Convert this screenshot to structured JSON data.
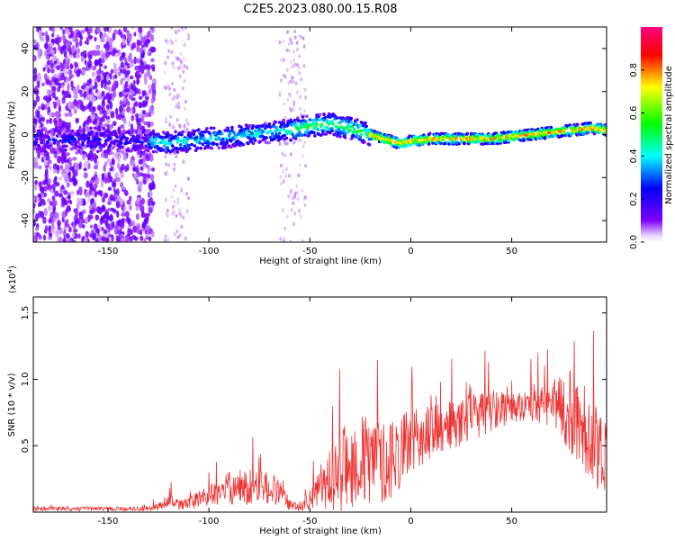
{
  "chart_data": [
    {
      "type": "heatmap",
      "title": "C2E5.2023.080.00.15.R08",
      "xlabel": "Height of straight line (km)",
      "ylabel": "Frequency (Hz)",
      "xlim": [
        -187,
        97
      ],
      "ylim": [
        -50,
        50
      ],
      "xticks": [
        -150,
        -100,
        -50,
        0,
        50
      ],
      "xtick_labels": [
        "-150",
        "-100",
        "-50",
        "0",
        "50"
      ],
      "yticks": [
        -40,
        -20,
        0,
        20,
        40
      ],
      "ytick_labels": [
        "-40",
        "-20",
        "0",
        "20",
        "40"
      ],
      "colorbar": {
        "label": "Normalized spectral amplitude",
        "range": [
          0,
          1
        ],
        "ticks": [
          0.0,
          0.2,
          0.4,
          0.6,
          0.8
        ],
        "tick_labels": [
          "0.0",
          "0.2",
          "0.4",
          "0.6",
          "0.8"
        ],
        "colormap": [
          "#ffffff",
          "#8000ff",
          "#0000ff",
          "#00ffff",
          "#00ff00",
          "#ffff00",
          "#ff0000",
          "#ff0080"
        ]
      },
      "ridge": {
        "x": [
          -187,
          -170,
          -150,
          -130,
          -120,
          -110,
          -100,
          -90,
          -80,
          -70,
          -60,
          -50,
          -40,
          -30,
          -20,
          -10,
          -5,
          0,
          10,
          20,
          30,
          40,
          50,
          60,
          70,
          80,
          90,
          97
        ],
        "y": [
          -2,
          -3,
          -2,
          -3,
          -4,
          -3,
          -2,
          -1,
          0,
          1,
          2,
          4,
          5,
          3,
          0,
          -3,
          -4,
          -3,
          -2,
          -2,
          -2,
          -2,
          -1,
          0,
          1,
          2,
          3,
          2
        ]
      },
      "grid": false
    },
    {
      "type": "line",
      "title": "",
      "xlabel": "Height of straight line (km)",
      "ylabel": "SNR (10 * v/v)",
      "y_multiplier": "(x10",
      "y_multiplier_exp": "4",
      "y_multiplier_close": ")",
      "xlim": [
        -187,
        97
      ],
      "ylim": [
        0,
        1.62
      ],
      "xticks": [
        -150,
        -100,
        -50,
        0,
        50
      ],
      "xtick_labels": [
        "-150",
        "-100",
        "-50",
        "0",
        "50"
      ],
      "yticks": [
        0.5,
        1.0,
        1.5
      ],
      "ytick_labels": [
        "0.5",
        "1.0",
        "1.5"
      ],
      "series": [
        {
          "color": "#ee3333",
          "envelope": {
            "x": [
              -187,
              -170,
              -150,
              -130,
              -125,
              -120,
              -115,
              -110,
              -100,
              -90,
              -80,
              -70,
              -65,
              -60,
              -55,
              -50,
              -45,
              -40,
              -35,
              -30,
              -25,
              -20,
              -15,
              -10,
              -5,
              0,
              5,
              10,
              20,
              30,
              40,
              50,
              60,
              70,
              75,
              80,
              85,
              90,
              97
            ],
            "base": [
              0.02,
              0.02,
              0.02,
              0.02,
              0.03,
              0.06,
              0.04,
              0.05,
              0.1,
              0.14,
              0.15,
              0.14,
              0.12,
              0.04,
              0.03,
              0.08,
              0.12,
              0.18,
              0.22,
              0.26,
              0.27,
              0.27,
              0.28,
              0.3,
              0.38,
              0.45,
              0.5,
              0.54,
              0.6,
              0.66,
              0.72,
              0.76,
              0.77,
              0.76,
              0.72,
              0.65,
              0.55,
              0.42,
              0.35
            ],
            "noise": [
              0.02,
              0.02,
              0.02,
              0.02,
              0.04,
              0.08,
              0.05,
              0.06,
              0.1,
              0.16,
              0.18,
              0.16,
              0.14,
              0.05,
              0.04,
              0.1,
              0.18,
              0.3,
              0.38,
              0.42,
              0.45,
              0.45,
              0.4,
              0.38,
              0.36,
              0.3,
              0.28,
              0.26,
              0.24,
              0.22,
              0.22,
              0.14,
              0.16,
              0.22,
              0.3,
              0.45,
              0.45,
              0.4,
              0.38
            ]
          }
        }
      ],
      "grid": false
    }
  ]
}
